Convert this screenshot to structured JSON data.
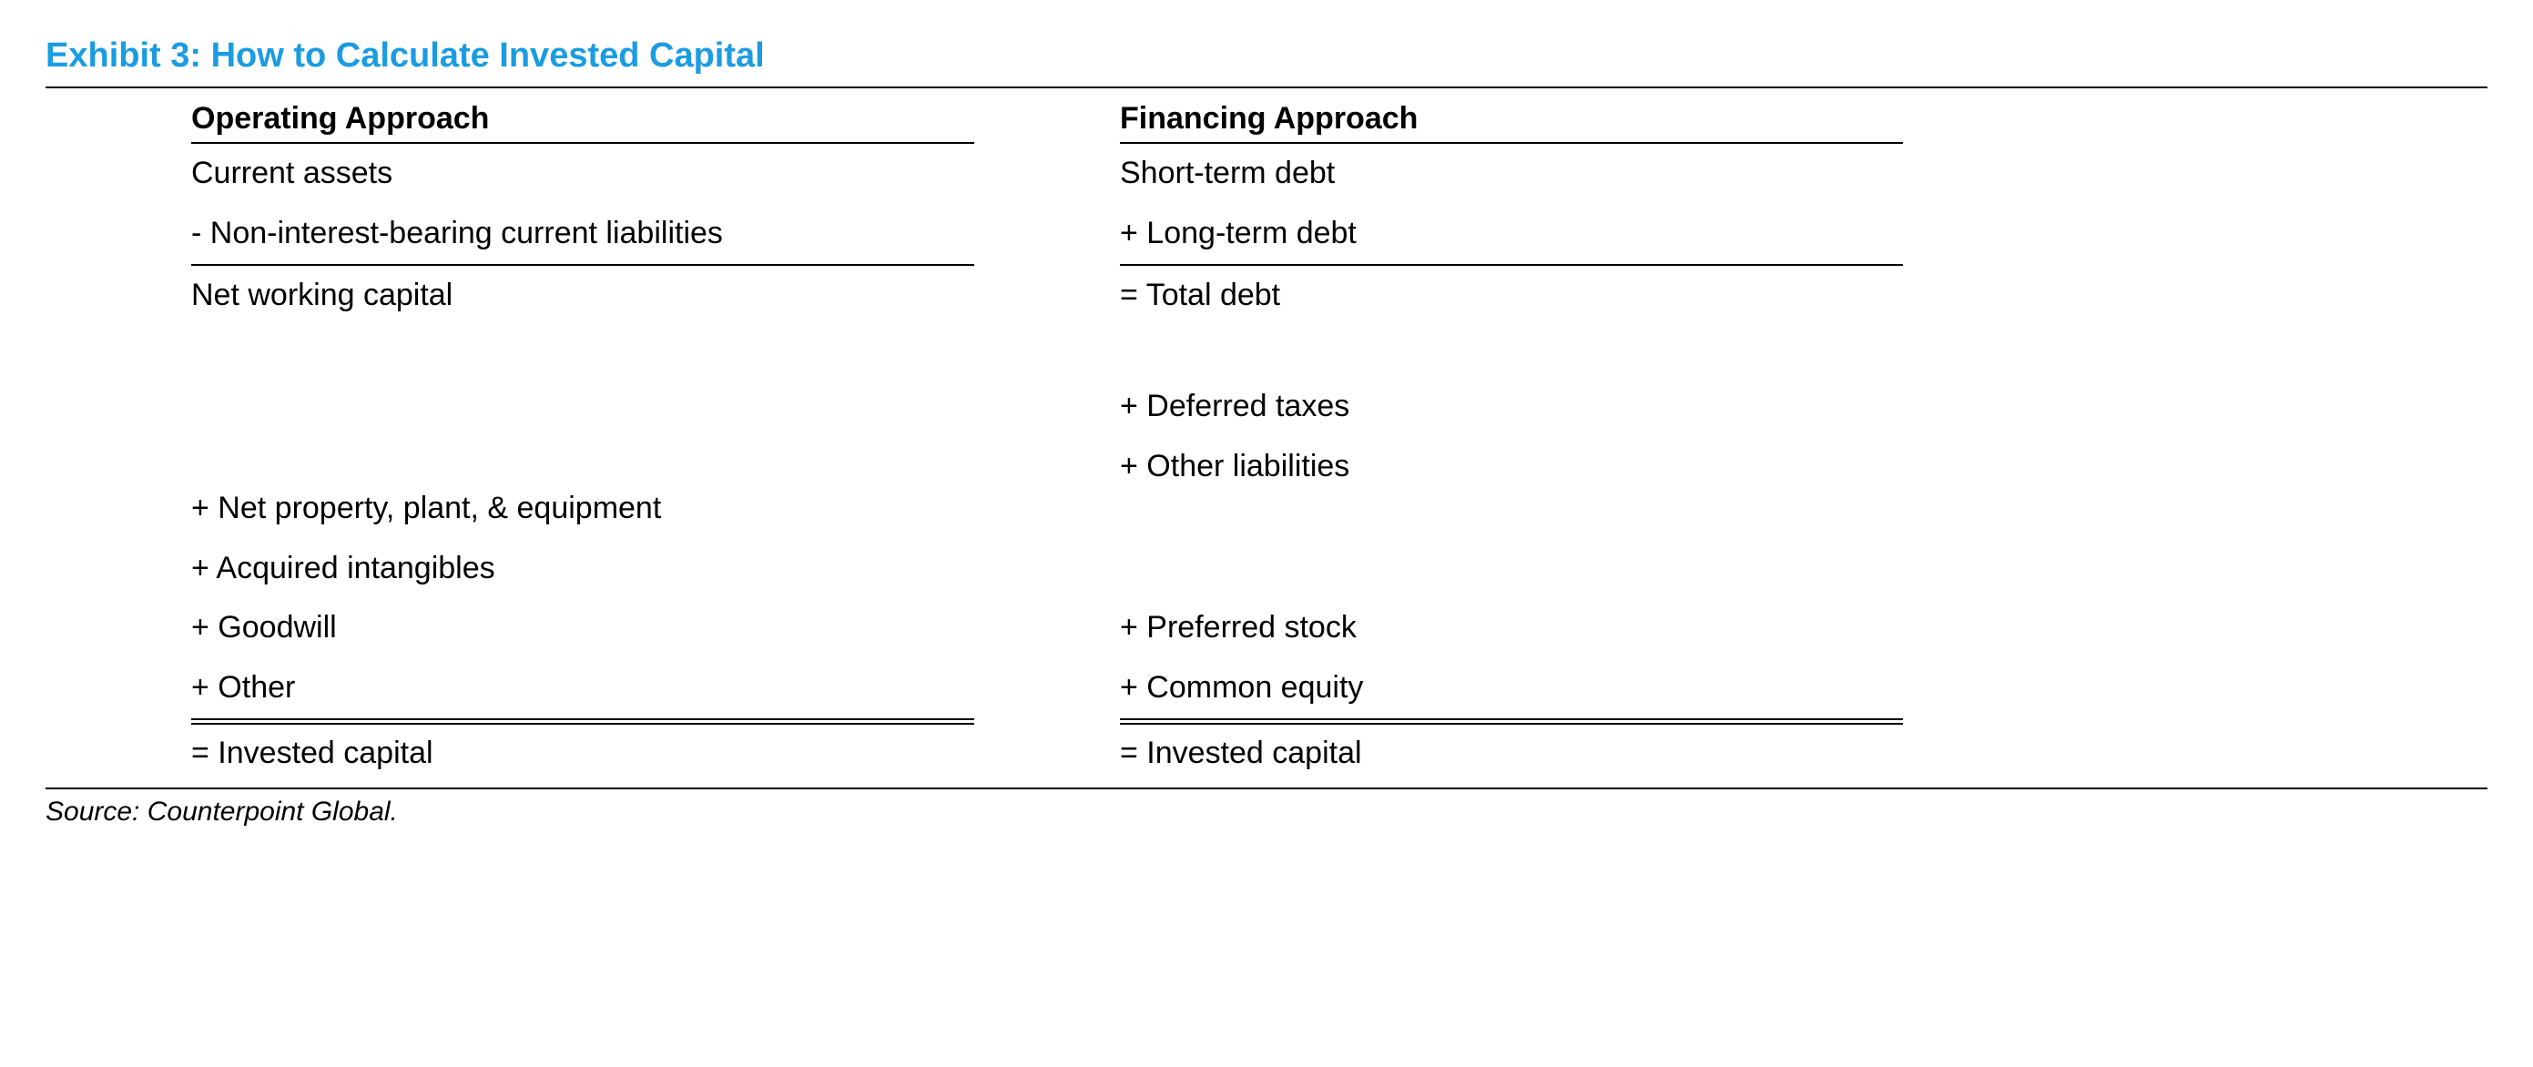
{
  "title": "Exhibit 3: How to Calculate Invested Capital",
  "title_color": "#1b9ce2",
  "rule_color": "#000000",
  "background_color": "#ffffff",
  "text_color": "#000000",
  "font_family": "Arial",
  "title_fontsize": 38,
  "header_fontsize": 34,
  "body_fontsize": 34,
  "source_fontsize": 30,
  "columns": {
    "operating": {
      "header": "Operating Approach",
      "rows": [
        {
          "text": "Current assets",
          "rule_before": false
        },
        {
          "text": "- Non-interest-bearing current liabilities",
          "rule_before": false
        },
        {
          "text": "Net working capital",
          "rule_before": "single"
        },
        {
          "text": "",
          "rule_before": false
        },
        {
          "text": "",
          "rule_before": false
        },
        {
          "text": "",
          "rule_before": false
        },
        {
          "text": "+ Net property, plant, & equipment",
          "rule_before": false
        },
        {
          "text": "+ Acquired intangibles",
          "rule_before": false
        },
        {
          "text": "+ Goodwill",
          "rule_before": false
        },
        {
          "text": "+ Other",
          "rule_before": false
        },
        {
          "text": "= Invested capital",
          "rule_before": "double"
        }
      ]
    },
    "financing": {
      "header": "Financing Approach",
      "rows": [
        {
          "text": "Short-term debt",
          "rule_before": false
        },
        {
          "text": "+ Long-term debt",
          "rule_before": false
        },
        {
          "text": "= Total debt",
          "rule_before": "single"
        },
        {
          "text": "",
          "rule_before": false
        },
        {
          "text": "+ Deferred taxes",
          "rule_before": false
        },
        {
          "text": "+ Other liabilities",
          "rule_before": false
        },
        {
          "text": "",
          "rule_before": false
        },
        {
          "text": "",
          "rule_before": false
        },
        {
          "text": "+ Preferred stock",
          "rule_before": false
        },
        {
          "text": "+ Common equity",
          "rule_before": false
        },
        {
          "text": "= Invested capital",
          "rule_before": "double"
        }
      ]
    }
  },
  "source": "Source: Counterpoint Global."
}
